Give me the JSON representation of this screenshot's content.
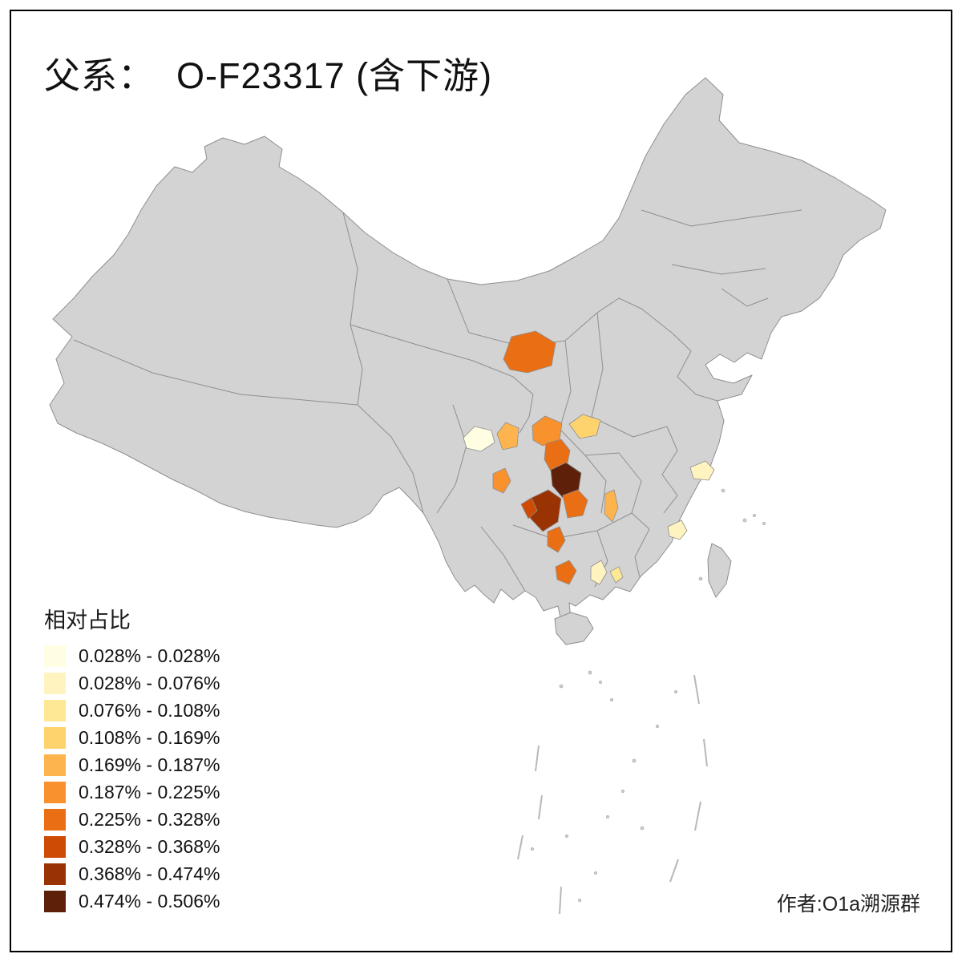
{
  "title": "父系：  O-F23317 (含下游)",
  "legend": {
    "title": "相对占比",
    "classes": [
      {
        "label": "0.028% - 0.028%",
        "color": "#FFFEE3"
      },
      {
        "label": "0.028% - 0.076%",
        "color": "#FFF3C0"
      },
      {
        "label": "0.076% - 0.108%",
        "color": "#FEE795"
      },
      {
        "label": "0.108% - 0.169%",
        "color": "#FED36E"
      },
      {
        "label": "0.169% - 0.187%",
        "color": "#FDB44E"
      },
      {
        "label": "0.187% - 0.225%",
        "color": "#F9912D"
      },
      {
        "label": "0.225% - 0.328%",
        "color": "#EA6E14"
      },
      {
        "label": "0.328% - 0.368%",
        "color": "#CE4B06"
      },
      {
        "label": "0.368% - 0.474%",
        "color": "#9A3304"
      },
      {
        "label": "0.474% - 0.506%",
        "color": "#5F2009"
      }
    ]
  },
  "author": "作者:O1a溯源群",
  "map": {
    "base_fill": "#d3d3d3",
    "border_color": "#8f8f8f"
  }
}
